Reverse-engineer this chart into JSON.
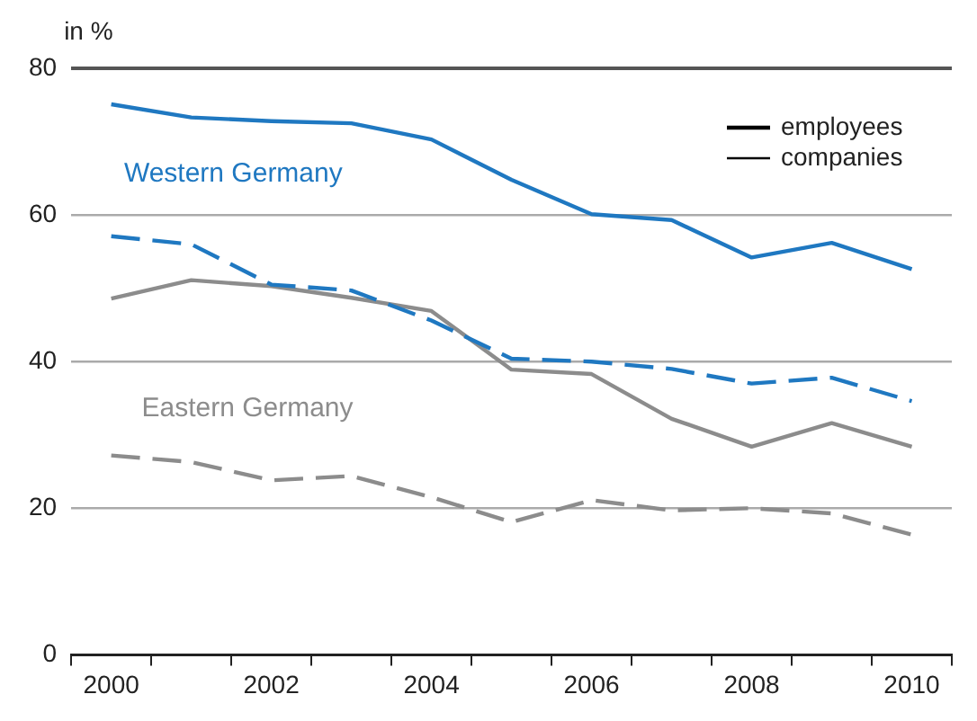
{
  "chart_data": {
    "type": "line",
    "ylabel": "in %",
    "categories": [
      "2000",
      null,
      "2002",
      null,
      "2004",
      null,
      "2006",
      null,
      "2008",
      null,
      "2010"
    ],
    "series": [
      {
        "color": "#1f78c1",
        "line_style": "solid",
        "values": [
          75.1,
          73.3,
          72.8,
          72.5,
          70.3,
          64.8,
          60.1,
          59.3,
          54.2,
          56.2,
          52.6
        ]
      },
      {
        "color": "#1f78c1",
        "line_style": "dashed",
        "values": [
          57.1,
          56.0,
          50.5,
          49.7,
          45.6,
          40.4,
          40.0,
          39.0,
          37.0,
          37.8,
          34.6
        ]
      },
      {
        "color": "#8c8c8c",
        "line_style": "solid",
        "values": [
          48.6,
          51.1,
          50.3,
          48.7,
          46.9,
          38.9,
          38.3,
          32.2,
          28.4,
          31.6,
          28.4
        ]
      },
      {
        "color": "#8c8c8c",
        "line_style": "dashed",
        "values": [
          27.2,
          26.3,
          23.8,
          24.4,
          21.5,
          18.1,
          21.1,
          19.7,
          20.0,
          19.3,
          16.4
        ]
      }
    ],
    "annotations": [
      "Western Germany",
      "Eastern Germany",
      "employees",
      "companies"
    ],
    "ylim": [
      0,
      80
    ],
    "yticks": [
      0,
      20,
      40,
      60,
      80
    ],
    "grid": "y",
    "marker": "none"
  }
}
